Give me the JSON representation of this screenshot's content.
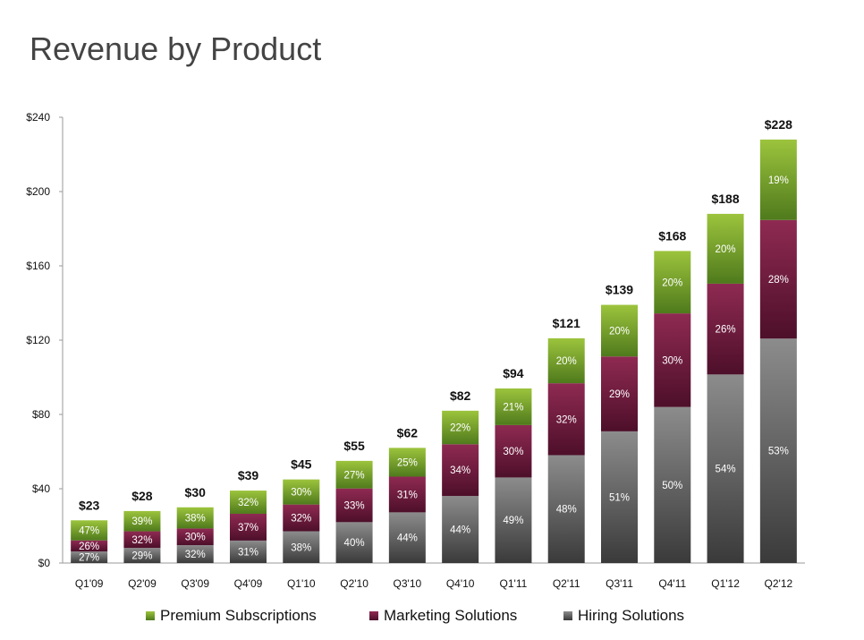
{
  "title": "Revenue by Product",
  "colors": {
    "premium_top": "#9cc43d",
    "premium_bottom": "#4f7a1c",
    "marketing_top": "#8f2a52",
    "marketing_bottom": "#4d0f2a",
    "hiring_top": "#8c8c8c",
    "hiring_bottom": "#3a3a3a",
    "axis": "#999999",
    "text": "#111111",
    "inner_label": "#ffffff"
  },
  "legend": [
    {
      "name": "Premium Subscriptions",
      "color_key": "premium"
    },
    {
      "name": "Marketing Solutions",
      "color_key": "marketing"
    },
    {
      "name": "Hiring Solutions",
      "color_key": "hiring"
    }
  ],
  "chart_data": {
    "type": "bar",
    "stacked": true,
    "categories": [
      "Q1'09",
      "Q2'09",
      "Q3'09",
      "Q4'09",
      "Q1'10",
      "Q2'10",
      "Q3'10",
      "Q4'10",
      "Q1'11",
      "Q2'11",
      "Q3'11",
      "Q4'11",
      "Q1'12",
      "Q2'12"
    ],
    "totals": [
      23,
      28,
      30,
      39,
      45,
      55,
      62,
      82,
      94,
      121,
      139,
      168,
      188,
      228
    ],
    "total_labels": [
      "$23",
      "$28",
      "$30",
      "$39",
      "$45",
      "$55",
      "$62",
      "$82",
      "$94",
      "$121",
      "$139",
      "$168",
      "$188",
      "$228"
    ],
    "series": [
      {
        "name": "Hiring Solutions",
        "key": "hiring",
        "percent": [
          27,
          29,
          32,
          31,
          38,
          40,
          44,
          44,
          49,
          48,
          51,
          50,
          54,
          53
        ]
      },
      {
        "name": "Marketing Solutions",
        "key": "marketing",
        "percent": [
          26,
          32,
          30,
          37,
          32,
          33,
          31,
          34,
          30,
          32,
          29,
          30,
          26,
          28
        ]
      },
      {
        "name": "Premium Subscriptions",
        "key": "premium",
        "percent": [
          47,
          39,
          38,
          32,
          30,
          27,
          25,
          22,
          21,
          20,
          20,
          20,
          20,
          19
        ]
      }
    ],
    "yticks": [
      "$0",
      "$40",
      "$80",
      "$120",
      "$160",
      "$200",
      "$240"
    ],
    "ylim": [
      0,
      240
    ],
    "grid": false,
    "legend_position": "bottom"
  }
}
